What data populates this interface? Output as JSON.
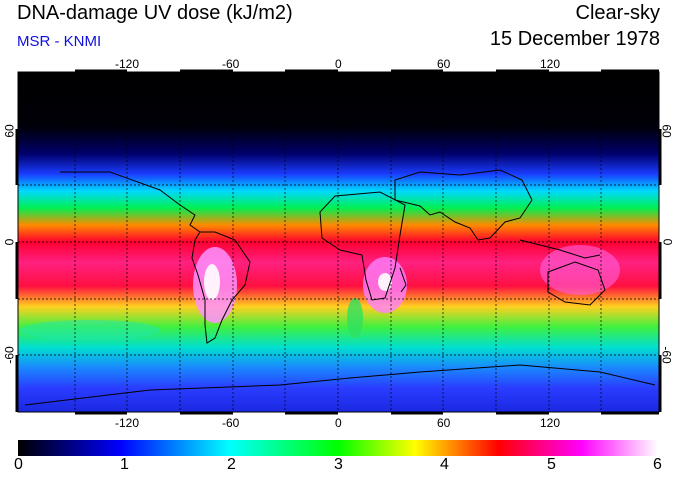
{
  "header": {
    "title": "DNA-damage UV dose (kJ/m2)",
    "credit": "MSR - KNMI",
    "mode": "Clear-sky",
    "date": "15 December 1978"
  },
  "map": {
    "longitude_ticks": [
      "-120",
      "-60",
      "0",
      "60",
      "120"
    ],
    "latitude_ticks": [
      "60",
      "0",
      "-60"
    ],
    "graticule_longitudes": [
      -150,
      -120,
      -90,
      -60,
      -30,
      0,
      30,
      60,
      90,
      120,
      150
    ],
    "graticule_latitudes": [
      60,
      30,
      0,
      -30,
      -60
    ]
  },
  "colorbar": {
    "min": 0,
    "max": 6,
    "tick_labels": [
      "0",
      "1",
      "2",
      "3",
      "4",
      "5",
      "6"
    ],
    "colors": [
      "#000000",
      "#0000ff",
      "#00ffff",
      "#00ff00",
      "#ffff00",
      "#ff0000",
      "#ff00ff",
      "#ffffff"
    ]
  }
}
